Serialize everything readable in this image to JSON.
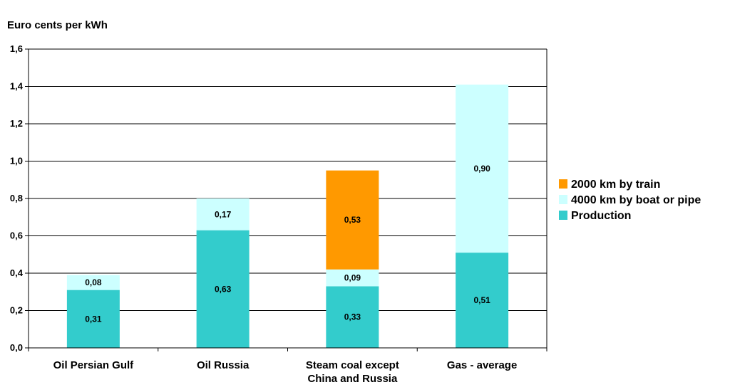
{
  "chart_data": {
    "type": "bar",
    "stacked": true,
    "ylabel": "Euro cents per kWh",
    "ylim": [
      0,
      1.6
    ],
    "ytick_step": 0.2,
    "decimal_separator": ",",
    "grid": true,
    "legend_position": "right",
    "categories": [
      [
        "Oil Persian Gulf"
      ],
      [
        "Oil Russia"
      ],
      [
        "Steam coal except",
        "China and Russia"
      ],
      [
        "Gas - average"
      ]
    ],
    "series": [
      {
        "name": "Production",
        "color": "#33CCCC",
        "values": [
          0.31,
          0.63,
          0.33,
          0.51
        ]
      },
      {
        "name": "4000 km by boat or pipe",
        "color": "#CCFFFF",
        "values": [
          0.08,
          0.17,
          0.09,
          0.9
        ]
      },
      {
        "name": "2000 km by train",
        "color": "#FF9900",
        "values": [
          null,
          null,
          0.53,
          null
        ]
      }
    ],
    "legend_order": [
      2,
      1,
      0
    ]
  }
}
